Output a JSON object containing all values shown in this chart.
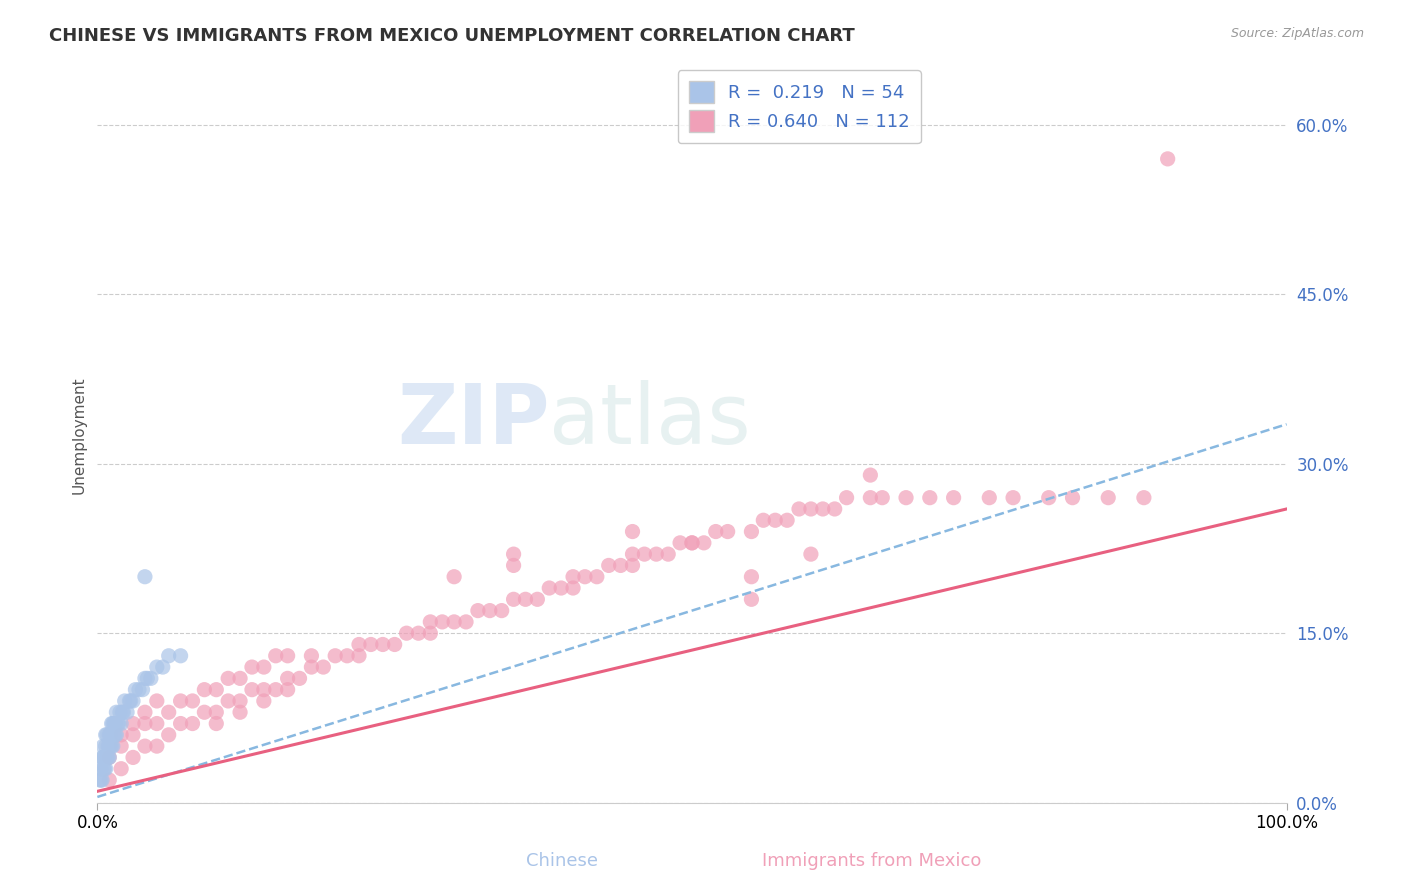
{
  "title": "CHINESE VS IMMIGRANTS FROM MEXICO UNEMPLOYMENT CORRELATION CHART",
  "source": "Source: ZipAtlas.com",
  "ylabel": "Unemployment",
  "xlim": [
    0.0,
    1.0
  ],
  "ylim": [
    0.0,
    0.65
  ],
  "yticks": [
    0.0,
    0.15,
    0.3,
    0.45,
    0.6
  ],
  "ytick_labels": [
    "0.0%",
    "15.0%",
    "30.0%",
    "45.0%",
    "60.0%"
  ],
  "xticks": [
    0.0,
    1.0
  ],
  "xtick_labels": [
    "0.0%",
    "100.0%"
  ],
  "chinese_R": 0.219,
  "chinese_N": 54,
  "mexico_R": 0.64,
  "mexico_N": 112,
  "chinese_color": "#aac4e8",
  "mexico_color": "#f0a0b8",
  "chinese_line_color": "#88b8e0",
  "mexico_line_color": "#e86080",
  "grid_color": "#cccccc",
  "watermark_zip": "ZIP",
  "watermark_atlas": "atlas",
  "background_color": "#ffffff",
  "legend_label_color": "#4472c4",
  "ytick_color": "#4472c4",
  "chinese_legend_label": "R =  0.219   N = 54",
  "mexico_legend_label": "R = 0.640   N = 112",
  "chinese_bottom_label": "Chinese",
  "mexico_bottom_label": "Immigrants from Mexico",
  "chinese_line_intercept": 0.005,
  "chinese_line_slope": 0.33,
  "mexico_line_intercept": 0.01,
  "mexico_line_slope": 0.25,
  "chinese_scatter_x": [
    0.002,
    0.003,
    0.004,
    0.004,
    0.005,
    0.005,
    0.005,
    0.006,
    0.006,
    0.007,
    0.007,
    0.007,
    0.008,
    0.008,
    0.009,
    0.009,
    0.01,
    0.01,
    0.01,
    0.011,
    0.011,
    0.012,
    0.012,
    0.013,
    0.013,
    0.014,
    0.014,
    0.015,
    0.015,
    0.016,
    0.016,
    0.017,
    0.018,
    0.019,
    0.02,
    0.021,
    0.022,
    0.023,
    0.025,
    0.027,
    0.028,
    0.03,
    0.032,
    0.035,
    0.038,
    0.04,
    0.042,
    0.045,
    0.05,
    0.055,
    0.06,
    0.07,
    0.04,
    0.003
  ],
  "chinese_scatter_y": [
    0.02,
    0.03,
    0.02,
    0.04,
    0.03,
    0.04,
    0.05,
    0.03,
    0.04,
    0.03,
    0.05,
    0.06,
    0.04,
    0.06,
    0.04,
    0.05,
    0.04,
    0.05,
    0.06,
    0.05,
    0.06,
    0.05,
    0.07,
    0.05,
    0.07,
    0.06,
    0.07,
    0.06,
    0.07,
    0.06,
    0.08,
    0.07,
    0.07,
    0.08,
    0.07,
    0.08,
    0.08,
    0.09,
    0.08,
    0.09,
    0.09,
    0.09,
    0.1,
    0.1,
    0.1,
    0.11,
    0.11,
    0.11,
    0.12,
    0.12,
    0.13,
    0.13,
    0.2,
    0.02
  ],
  "mexico_scatter_x": [
    0.01,
    0.01,
    0.02,
    0.02,
    0.02,
    0.03,
    0.03,
    0.03,
    0.04,
    0.04,
    0.04,
    0.05,
    0.05,
    0.05,
    0.06,
    0.06,
    0.07,
    0.07,
    0.08,
    0.08,
    0.09,
    0.09,
    0.1,
    0.1,
    0.11,
    0.11,
    0.12,
    0.12,
    0.13,
    0.13,
    0.14,
    0.14,
    0.15,
    0.15,
    0.16,
    0.16,
    0.17,
    0.18,
    0.19,
    0.2,
    0.21,
    0.22,
    0.23,
    0.24,
    0.25,
    0.26,
    0.27,
    0.28,
    0.29,
    0.3,
    0.31,
    0.32,
    0.33,
    0.34,
    0.35,
    0.36,
    0.37,
    0.38,
    0.39,
    0.4,
    0.41,
    0.42,
    0.43,
    0.44,
    0.45,
    0.46,
    0.47,
    0.48,
    0.49,
    0.5,
    0.51,
    0.52,
    0.53,
    0.55,
    0.56,
    0.57,
    0.58,
    0.59,
    0.6,
    0.61,
    0.62,
    0.63,
    0.65,
    0.66,
    0.68,
    0.7,
    0.72,
    0.75,
    0.77,
    0.8,
    0.82,
    0.85,
    0.88,
    0.3,
    0.35,
    0.4,
    0.45,
    0.5,
    0.55,
    0.6,
    0.18,
    0.22,
    0.28,
    0.1,
    0.12,
    0.14,
    0.16,
    0.35,
    0.45,
    0.55,
    0.65,
    0.9
  ],
  "mexico_scatter_y": [
    0.02,
    0.04,
    0.03,
    0.05,
    0.06,
    0.04,
    0.06,
    0.07,
    0.05,
    0.07,
    0.08,
    0.05,
    0.07,
    0.09,
    0.06,
    0.08,
    0.07,
    0.09,
    0.07,
    0.09,
    0.08,
    0.1,
    0.08,
    0.1,
    0.09,
    0.11,
    0.09,
    0.11,
    0.1,
    0.12,
    0.1,
    0.12,
    0.1,
    0.13,
    0.11,
    0.13,
    0.11,
    0.12,
    0.12,
    0.13,
    0.13,
    0.13,
    0.14,
    0.14,
    0.14,
    0.15,
    0.15,
    0.15,
    0.16,
    0.16,
    0.16,
    0.17,
    0.17,
    0.17,
    0.18,
    0.18,
    0.18,
    0.19,
    0.19,
    0.2,
    0.2,
    0.2,
    0.21,
    0.21,
    0.22,
    0.22,
    0.22,
    0.22,
    0.23,
    0.23,
    0.23,
    0.24,
    0.24,
    0.24,
    0.25,
    0.25,
    0.25,
    0.26,
    0.26,
    0.26,
    0.26,
    0.27,
    0.27,
    0.27,
    0.27,
    0.27,
    0.27,
    0.27,
    0.27,
    0.27,
    0.27,
    0.27,
    0.27,
    0.2,
    0.22,
    0.19,
    0.21,
    0.23,
    0.2,
    0.22,
    0.13,
    0.14,
    0.16,
    0.07,
    0.08,
    0.09,
    0.1,
    0.21,
    0.24,
    0.18,
    0.29,
    0.57
  ]
}
